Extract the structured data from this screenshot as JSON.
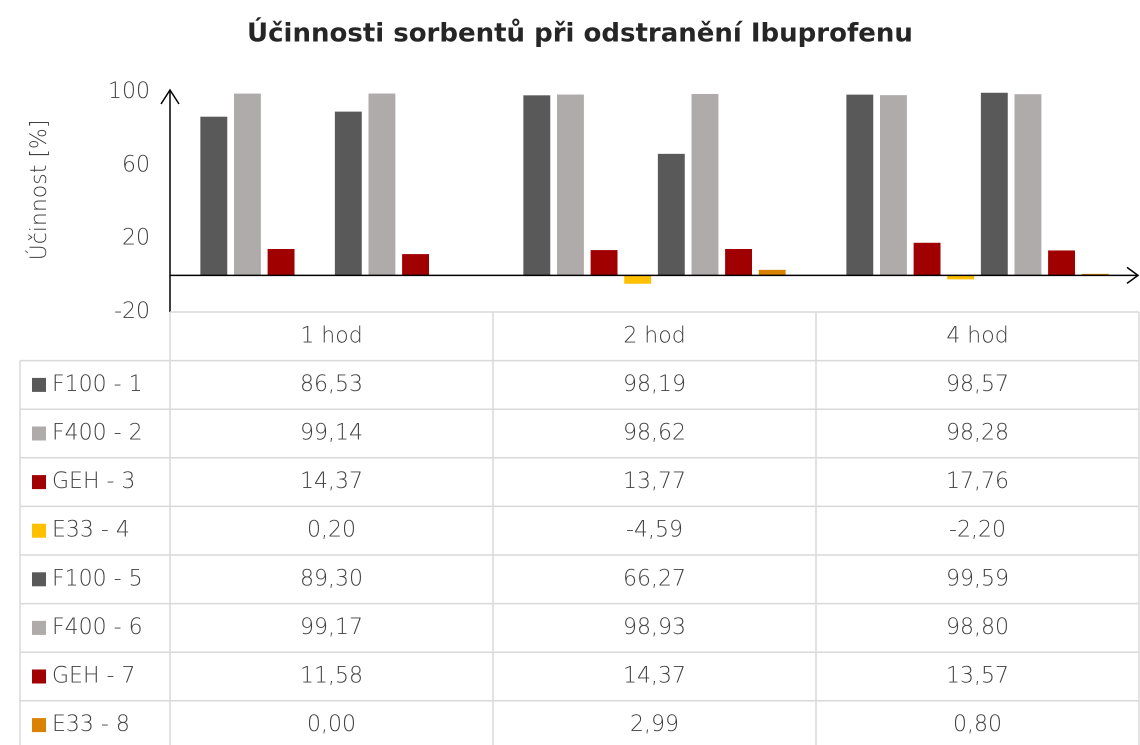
{
  "chart_data": {
    "type": "bar",
    "title": "Účinnosti sorbentů při odstranění Ibuprofenu",
    "y_label": "Účinnost [%]",
    "categories": [
      "1 hod",
      "2 hod",
      "4 hod"
    ],
    "ylim": [
      -20,
      100
    ],
    "yticks": [
      -20,
      20,
      60,
      100
    ],
    "grid": false,
    "series": [
      {
        "name": "F100 - 1",
        "color": "#595959",
        "values": [
          86.53,
          98.19,
          98.57
        ],
        "value_labels": [
          "86,53",
          "98,19",
          "98,57"
        ]
      },
      {
        "name": "F400 - 2",
        "color": "#afabab",
        "values": [
          99.14,
          98.62,
          98.28
        ],
        "value_labels": [
          "99,14",
          "98,62",
          "98,28"
        ]
      },
      {
        "name": "GEH - 3",
        "color": "#a00000",
        "values": [
          14.37,
          13.77,
          17.76
        ],
        "value_labels": [
          "14,37",
          "13,77",
          "17,76"
        ]
      },
      {
        "name": "E33 - 4",
        "color": "#ffc000",
        "values": [
          0.2,
          -4.59,
          -2.2
        ],
        "value_labels": [
          "0,20",
          "-4,59",
          "-2,20"
        ]
      },
      {
        "name": "F100 - 5",
        "color": "#595959",
        "values": [
          89.3,
          66.27,
          99.59
        ],
        "value_labels": [
          "89,30",
          "66,27",
          "99,59"
        ]
      },
      {
        "name": "F400 - 6",
        "color": "#afabab",
        "values": [
          99.17,
          98.93,
          98.8
        ],
        "value_labels": [
          "99,17",
          "98,93",
          "98,80"
        ]
      },
      {
        "name": "GEH - 7",
        "color": "#a00000",
        "values": [
          11.58,
          14.37,
          13.57
        ],
        "value_labels": [
          "11,58",
          "14,37",
          "13,57"
        ]
      },
      {
        "name": "E33 - 8",
        "color": "#d98200",
        "values": [
          0.0,
          2.99,
          0.8
        ],
        "value_labels": [
          "0,00",
          "2,99",
          "0,80"
        ]
      }
    ]
  }
}
